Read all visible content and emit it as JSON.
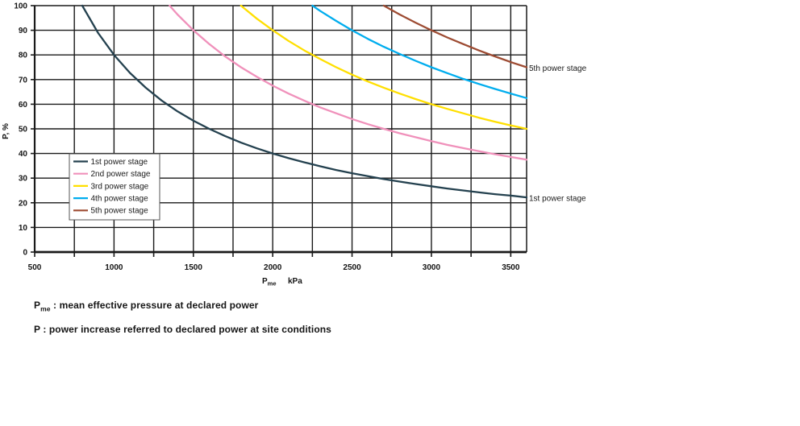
{
  "chart_data": {
    "type": "line",
    "title": "",
    "ylabel": "P, %",
    "xlabel_symbol": "P",
    "xlabel_subscript": "me",
    "xlabel_unit": "kPa",
    "xlim": [
      500,
      3600
    ],
    "ylim": [
      0,
      100
    ],
    "x_grid_step": 250,
    "y_grid_step": 10,
    "x_ticks": [
      500,
      1000,
      1500,
      2000,
      2500,
      3000,
      3500
    ],
    "y_ticks": [
      0,
      10,
      20,
      30,
      40,
      50,
      60,
      70,
      80,
      90,
      100
    ],
    "grid": true,
    "legend_position": "inside-middle-left",
    "legend_labels": [
      "1st power stage",
      "2nd power stage",
      "3rd power stage",
      "4th power stage",
      "5th  power stage"
    ],
    "colors": {
      "axis": "#1a1a1a",
      "grid": "#1a1a1a",
      "text": "#151515",
      "legend_border": "#555555",
      "legend_bg": "#ffffff"
    },
    "series": [
      {
        "name": "1st power stage",
        "color": "#24414F",
        "points": [
          [
            800,
            100
          ],
          [
            900,
            88.9
          ],
          [
            1000,
            80
          ],
          [
            1100,
            72.7
          ],
          [
            1200,
            66.7
          ],
          [
            1300,
            61.5
          ],
          [
            1400,
            57.1
          ],
          [
            1500,
            53.3
          ],
          [
            1600,
            50
          ],
          [
            1700,
            47.1
          ],
          [
            1800,
            44.4
          ],
          [
            1900,
            42.1
          ],
          [
            2000,
            40
          ],
          [
            2100,
            38.1
          ],
          [
            2200,
            36.4
          ],
          [
            2300,
            34.8
          ],
          [
            2400,
            33.3
          ],
          [
            2500,
            32
          ],
          [
            2600,
            30.8
          ],
          [
            2700,
            29.6
          ],
          [
            2800,
            28.6
          ],
          [
            2900,
            27.6
          ],
          [
            3000,
            26.7
          ],
          [
            3100,
            25.8
          ],
          [
            3200,
            25
          ],
          [
            3300,
            24.2
          ],
          [
            3400,
            23.5
          ],
          [
            3500,
            22.9
          ],
          [
            3600,
            22.2
          ]
        ]
      },
      {
        "name": "2nd power stage",
        "color": "#F091BB",
        "points": [
          [
            1350,
            100
          ],
          [
            1400,
            96.4
          ],
          [
            1500,
            90
          ],
          [
            1600,
            84.4
          ],
          [
            1700,
            79.4
          ],
          [
            1800,
            75
          ],
          [
            1900,
            71.1
          ],
          [
            2000,
            67.5
          ],
          [
            2100,
            64.3
          ],
          [
            2200,
            61.4
          ],
          [
            2300,
            58.7
          ],
          [
            2400,
            56.3
          ],
          [
            2500,
            54
          ],
          [
            2600,
            51.9
          ],
          [
            2700,
            50
          ],
          [
            2800,
            48.2
          ],
          [
            2900,
            46.6
          ],
          [
            3000,
            45
          ],
          [
            3100,
            43.5
          ],
          [
            3200,
            42.2
          ],
          [
            3300,
            40.9
          ],
          [
            3400,
            39.7
          ],
          [
            3500,
            38.6
          ],
          [
            3600,
            37.5
          ]
        ]
      },
      {
        "name": "3rd power stage",
        "color": "#FFDF00",
        "points": [
          [
            1800,
            100
          ],
          [
            1900,
            94.7
          ],
          [
            2000,
            90
          ],
          [
            2100,
            85.7
          ],
          [
            2200,
            81.8
          ],
          [
            2300,
            78.3
          ],
          [
            2400,
            75
          ],
          [
            2500,
            72
          ],
          [
            2600,
            69.2
          ],
          [
            2700,
            66.7
          ],
          [
            2800,
            64.3
          ],
          [
            2900,
            62.1
          ],
          [
            3000,
            60
          ],
          [
            3100,
            58.1
          ],
          [
            3200,
            56.3
          ],
          [
            3300,
            54.5
          ],
          [
            3400,
            52.9
          ],
          [
            3500,
            51.4
          ],
          [
            3600,
            50
          ]
        ]
      },
      {
        "name": "4th power stage",
        "color": "#00ADEE",
        "points": [
          [
            2250,
            100
          ],
          [
            2300,
            97.8
          ],
          [
            2400,
            93.8
          ],
          [
            2500,
            90
          ],
          [
            2600,
            86.5
          ],
          [
            2700,
            83.3
          ],
          [
            2800,
            80.4
          ],
          [
            2900,
            77.6
          ],
          [
            3000,
            75
          ],
          [
            3100,
            72.6
          ],
          [
            3200,
            70.3
          ],
          [
            3300,
            68.2
          ],
          [
            3400,
            66.2
          ],
          [
            3500,
            64.3
          ],
          [
            3600,
            62.5
          ]
        ]
      },
      {
        "name": "5th power stage",
        "color": "#9D4B32",
        "points": [
          [
            2700,
            100
          ],
          [
            2800,
            96.4
          ],
          [
            2900,
            93.1
          ],
          [
            3000,
            90
          ],
          [
            3100,
            87.1
          ],
          [
            3200,
            84.4
          ],
          [
            3300,
            81.8
          ],
          [
            3400,
            79.4
          ],
          [
            3500,
            77.1
          ],
          [
            3600,
            75
          ]
        ]
      }
    ],
    "annotations": [
      {
        "text": "5th power stage",
        "y_pct": 74.6
      },
      {
        "text": "1st power stage",
        "y_pct": 21.9
      }
    ]
  },
  "footnotes": {
    "line1_symbol": "P",
    "line1_sub": "me",
    "line1_text": " : mean effective pressure at declared power",
    "line2_symbol": "P",
    "line2_text": " : power increase referred to declared power at site conditions"
  }
}
